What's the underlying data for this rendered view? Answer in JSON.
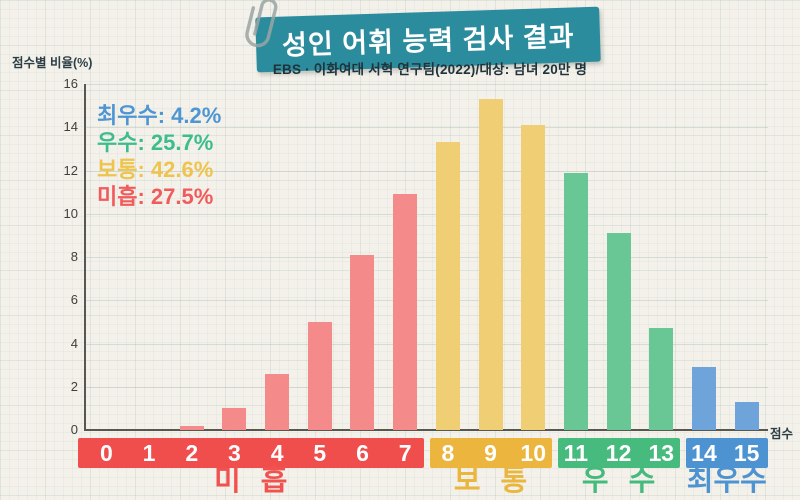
{
  "header": {
    "title": "성인 어휘 능력 검사 결과",
    "subtitle": "EBS · 이화여대 서혁 연구팀(2022)/대상: 남녀 20만 명"
  },
  "axes": {
    "y_label": "점수별 비율(%)",
    "x_label": "점수"
  },
  "legend": [
    {
      "label": "최우수",
      "value": "4.2%",
      "color": "#4e96d3"
    },
    {
      "label": "우수",
      "value": "25.7%",
      "color": "#3cbd8b"
    },
    {
      "label": "보통",
      "value": "42.6%",
      "color": "#eec44d"
    },
    {
      "label": "미흡",
      "value": "27.5%",
      "color": "#f15b5b"
    }
  ],
  "chart_data": {
    "type": "bar",
    "title": "성인 어휘 능력 검사 결과",
    "subtitle": "EBS · 이화여대 서혁 연구팀(2022)/대상: 남녀 20만 명",
    "xlabel": "점수",
    "ylabel": "점수별 비율(%)",
    "ylim": [
      0,
      16
    ],
    "yticks": [
      0,
      2,
      4,
      6,
      8,
      10,
      12,
      14,
      16
    ],
    "grid": true,
    "legend_position": "upper-left",
    "categories": [
      "0",
      "1",
      "2",
      "3",
      "4",
      "5",
      "6",
      "7",
      "8",
      "9",
      "10",
      "11",
      "12",
      "13",
      "14",
      "15"
    ],
    "values": [
      0,
      0,
      0.2,
      1.0,
      2.6,
      5.0,
      8.1,
      10.9,
      13.3,
      15.3,
      14.1,
      11.9,
      9.1,
      4.7,
      2.9,
      1.3
    ],
    "groups": [
      {
        "name": "미흡",
        "score_range": [
          0,
          7
        ],
        "percent": 27.5,
        "bar_color": "#f58a8a",
        "band_color": "#f04d4d",
        "label_color": "#f2524f"
      },
      {
        "name": "보통",
        "score_range": [
          8,
          10
        ],
        "percent": 42.6,
        "bar_color": "#f0ce74",
        "band_color": "#ecb53d",
        "label_color": "#eab63e"
      },
      {
        "name": "우수",
        "score_range": [
          11,
          13
        ],
        "percent": 25.7,
        "bar_color": "#68c795",
        "band_color": "#47ba7e",
        "label_color": "#45ba7d"
      },
      {
        "name": "최우수",
        "score_range": [
          14,
          15
        ],
        "percent": 4.2,
        "bar_color": "#6fa4db",
        "band_color": "#4d92d1",
        "label_color": "#4d92d1"
      }
    ]
  },
  "colors": {
    "banner_bg": "#2b8c9d",
    "banner_text": "#ffffff",
    "paper_bg": "#f3f1ea",
    "axis": "#57564f"
  }
}
